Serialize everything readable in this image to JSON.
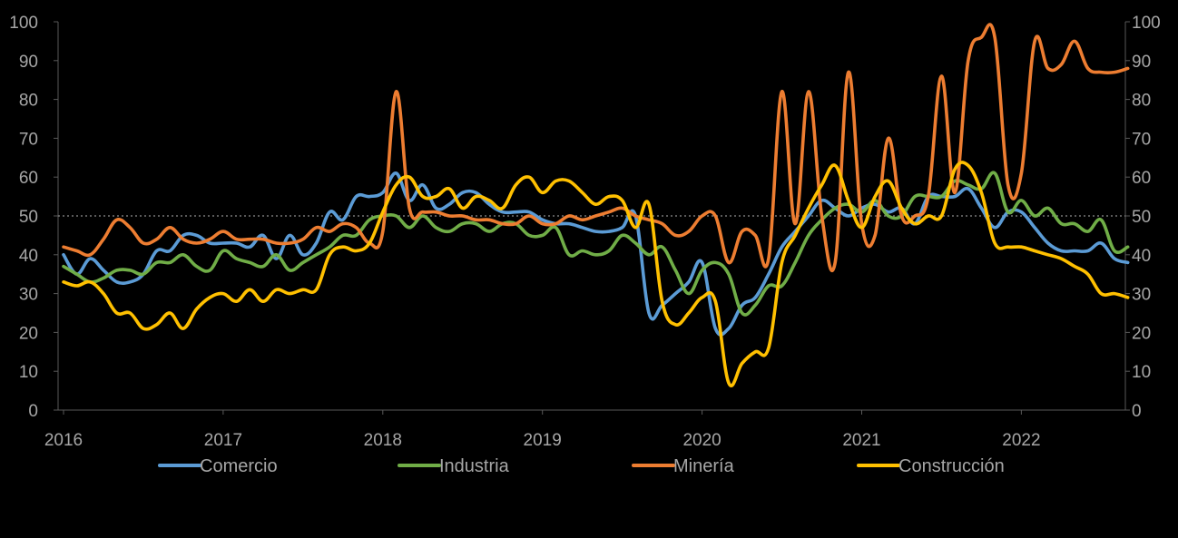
{
  "chart_data": {
    "type": "line",
    "title": "",
    "xlabel": "",
    "ylabel": "",
    "x_start": "2016-01",
    "x_end": "2022-08",
    "x_ticks": [
      "2016",
      "2017",
      "2018",
      "2019",
      "2020",
      "2021",
      "2022"
    ],
    "ylim": [
      0,
      100
    ],
    "y_ticks": [
      "0",
      "10",
      "20",
      "30",
      "40",
      "50",
      "60",
      "70",
      "80",
      "90",
      "100"
    ],
    "y2_ticks": [
      "0",
      "10",
      "20",
      "30",
      "40",
      "50",
      "60",
      "70",
      "80",
      "90",
      "100"
    ],
    "reference_line": 50,
    "grid": false,
    "legend_position": "bottom",
    "series": [
      {
        "name": "Comercio",
        "color": "#5b9bd5",
        "values": [
          40,
          35,
          39,
          36,
          33,
          33,
          35,
          41,
          41,
          45,
          45,
          43,
          43,
          43,
          42,
          45,
          39,
          45,
          40,
          43,
          51,
          49,
          55,
          55,
          56,
          61,
          54,
          58,
          52,
          53,
          56,
          56,
          53,
          51,
          51,
          51,
          49,
          48,
          48,
          47,
          46,
          46,
          47,
          50,
          25,
          27,
          30,
          33,
          38,
          21,
          21,
          27,
          29,
          35,
          42,
          46,
          50,
          54,
          52,
          50,
          52,
          53,
          51,
          52,
          48,
          55,
          55,
          55,
          57,
          52,
          47,
          51,
          51,
          47,
          43,
          41,
          41,
          41,
          43,
          39,
          38
        ]
      },
      {
        "name": "Industria",
        "color": "#70ad47",
        "values": [
          37,
          35,
          33,
          34,
          36,
          36,
          35,
          38,
          38,
          40,
          37,
          36,
          41,
          39,
          38,
          37,
          40,
          36,
          38,
          40,
          42,
          45,
          45,
          49,
          50,
          50,
          47,
          50,
          47,
          46,
          48,
          48,
          46,
          48,
          48,
          45,
          45,
          47,
          40,
          41,
          40,
          41,
          45,
          43,
          40,
          42,
          36,
          30,
          36,
          38,
          35,
          25,
          27,
          32,
          32,
          38,
          45,
          49,
          52,
          53,
          51,
          54,
          50,
          50,
          55,
          55,
          55,
          59,
          58,
          57,
          61,
          51,
          54,
          50,
          52,
          48,
          48,
          46,
          49,
          41,
          42
        ]
      },
      {
        "name": "Minería",
        "color": "#ed7d31",
        "values": [
          42,
          41,
          40,
          44,
          49,
          47,
          43,
          44,
          47,
          44,
          43,
          44,
          46,
          44,
          44,
          44,
          43,
          43,
          44,
          47,
          46,
          48,
          47,
          43,
          46,
          82,
          52,
          51,
          51,
          50,
          50,
          49,
          49,
          48,
          48,
          50,
          48,
          48,
          50,
          49,
          50,
          51,
          52,
          50,
          49,
          48,
          45,
          46,
          50,
          50,
          38,
          46,
          45,
          39,
          82,
          48,
          82,
          50,
          38,
          87,
          48,
          45,
          70,
          50,
          50,
          55,
          86,
          56,
          90,
          96,
          96,
          58,
          61,
          95,
          88,
          89,
          95,
          88,
          87,
          87,
          88
        ]
      },
      {
        "name": "Construcción",
        "color": "#ffc000",
        "values": [
          33,
          32,
          33,
          30,
          25,
          25,
          21,
          22,
          25,
          21,
          26,
          29,
          30,
          28,
          31,
          28,
          31,
          30,
          31,
          31,
          40,
          42,
          41,
          43,
          51,
          58,
          60,
          55,
          55,
          57,
          52,
          55,
          54,
          52,
          58,
          60,
          56,
          59,
          59,
          56,
          53,
          55,
          54,
          47,
          53,
          28,
          22,
          25,
          29,
          28,
          7,
          12,
          15,
          16,
          38,
          45,
          52,
          58,
          63,
          54,
          47,
          55,
          59,
          52,
          48,
          50,
          50,
          62,
          63,
          56,
          43,
          42,
          42,
          41,
          40,
          39,
          37,
          35,
          30,
          30,
          29
        ]
      }
    ]
  }
}
